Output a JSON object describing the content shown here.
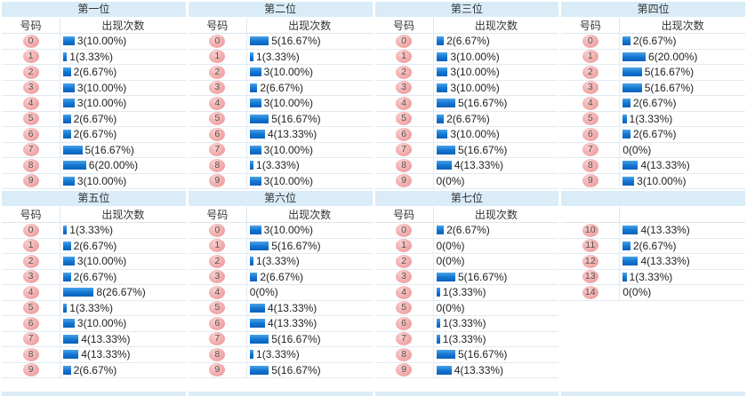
{
  "colors": {
    "title_bg": "#d9ecf7",
    "bar_blue": "#1274d0",
    "badge_pink": "#f2abab",
    "row_line": "#e1eaf3"
  },
  "chart_data": [
    {
      "type": "bar",
      "title": "第一位",
      "col_headers": [
        "号码",
        "出现次数"
      ],
      "categories": [
        "0",
        "1",
        "2",
        "3",
        "4",
        "5",
        "6",
        "7",
        "8",
        "9"
      ],
      "values": [
        3,
        1,
        2,
        3,
        3,
        2,
        2,
        5,
        6,
        3
      ],
      "labels": [
        "3(10.00%)",
        "1(3.33%)",
        "2(6.67%)",
        "3(10.00%)",
        "3(10.00%)",
        "2(6.67%)",
        "2(6.67%)",
        "5(16.67%)",
        "6(20.00%)",
        "3(10.00%)"
      ]
    },
    {
      "type": "bar",
      "title": "第二位",
      "col_headers": [
        "号码",
        "出现次数"
      ],
      "categories": [
        "0",
        "1",
        "2",
        "3",
        "4",
        "5",
        "6",
        "7",
        "8",
        "9"
      ],
      "values": [
        5,
        1,
        3,
        2,
        3,
        5,
        4,
        3,
        1,
        3
      ],
      "labels": [
        "5(16.67%)",
        "1(3.33%)",
        "3(10.00%)",
        "2(6.67%)",
        "3(10.00%)",
        "5(16.67%)",
        "4(13.33%)",
        "3(10.00%)",
        "1(3.33%)",
        "3(10.00%)"
      ]
    },
    {
      "type": "bar",
      "title": "第三位",
      "col_headers": [
        "号码",
        "出现次数"
      ],
      "categories": [
        "0",
        "1",
        "2",
        "3",
        "4",
        "5",
        "6",
        "7",
        "8",
        "9"
      ],
      "values": [
        2,
        3,
        3,
        3,
        5,
        2,
        3,
        5,
        4,
        0
      ],
      "labels": [
        "2(6.67%)",
        "3(10.00%)",
        "3(10.00%)",
        "3(10.00%)",
        "5(16.67%)",
        "2(6.67%)",
        "3(10.00%)",
        "5(16.67%)",
        "4(13.33%)",
        "0(0%)"
      ]
    },
    {
      "type": "bar",
      "title": "第四位",
      "col_headers": [
        "号码",
        "出现次数"
      ],
      "categories": [
        "0",
        "1",
        "2",
        "3",
        "4",
        "5",
        "6",
        "7",
        "8",
        "9"
      ],
      "values": [
        2,
        6,
        5,
        5,
        2,
        1,
        2,
        0,
        4,
        3
      ],
      "labels": [
        "2(6.67%)",
        "6(20.00%)",
        "5(16.67%)",
        "5(16.67%)",
        "2(6.67%)",
        "1(3.33%)",
        "2(6.67%)",
        "0(0%)",
        "4(13.33%)",
        "3(10.00%)"
      ]
    },
    {
      "type": "bar",
      "title": "第五位",
      "col_headers": [
        "号码",
        "出现次数"
      ],
      "categories": [
        "0",
        "1",
        "2",
        "3",
        "4",
        "5",
        "6",
        "7",
        "8",
        "9"
      ],
      "values": [
        1,
        2,
        3,
        2,
        8,
        1,
        3,
        4,
        4,
        2
      ],
      "labels": [
        "1(3.33%)",
        "2(6.67%)",
        "3(10.00%)",
        "2(6.67%)",
        "8(26.67%)",
        "1(3.33%)",
        "3(10.00%)",
        "4(13.33%)",
        "4(13.33%)",
        "2(6.67%)"
      ]
    },
    {
      "type": "bar",
      "title": "第六位",
      "col_headers": [
        "号码",
        "出现次数"
      ],
      "categories": [
        "0",
        "1",
        "2",
        "3",
        "4",
        "5",
        "6",
        "7",
        "8",
        "9"
      ],
      "values": [
        3,
        5,
        1,
        2,
        0,
        4,
        4,
        5,
        1,
        5
      ],
      "labels": [
        "3(10.00%)",
        "5(16.67%)",
        "1(3.33%)",
        "2(6.67%)",
        "0(0%)",
        "4(13.33%)",
        "4(13.33%)",
        "5(16.67%)",
        "1(3.33%)",
        "5(16.67%)"
      ]
    },
    {
      "type": "bar",
      "title": "第七位",
      "col_headers": [
        "号码",
        "出现次数"
      ],
      "categories": [
        "0",
        "1",
        "2",
        "3",
        "4",
        "5",
        "6",
        "7",
        "8",
        "9"
      ],
      "values": [
        2,
        0,
        0,
        5,
        1,
        0,
        1,
        1,
        5,
        4
      ],
      "labels": [
        "2(6.67%)",
        "0(0%)",
        "0(0%)",
        "5(16.67%)",
        "1(3.33%)",
        "0(0%)",
        "1(3.33%)",
        "1(3.33%)",
        "5(16.67%)",
        "4(13.33%)"
      ]
    },
    {
      "type": "bar",
      "title": "",
      "col_headers": [
        "",
        ""
      ],
      "categories": [
        "10",
        "11",
        "12",
        "13",
        "14"
      ],
      "values": [
        4,
        2,
        4,
        1,
        0
      ],
      "labels": [
        "4(13.33%)",
        "2(6.67%)",
        "4(13.33%)",
        "1(3.33%)",
        "0(0%)"
      ]
    }
  ]
}
